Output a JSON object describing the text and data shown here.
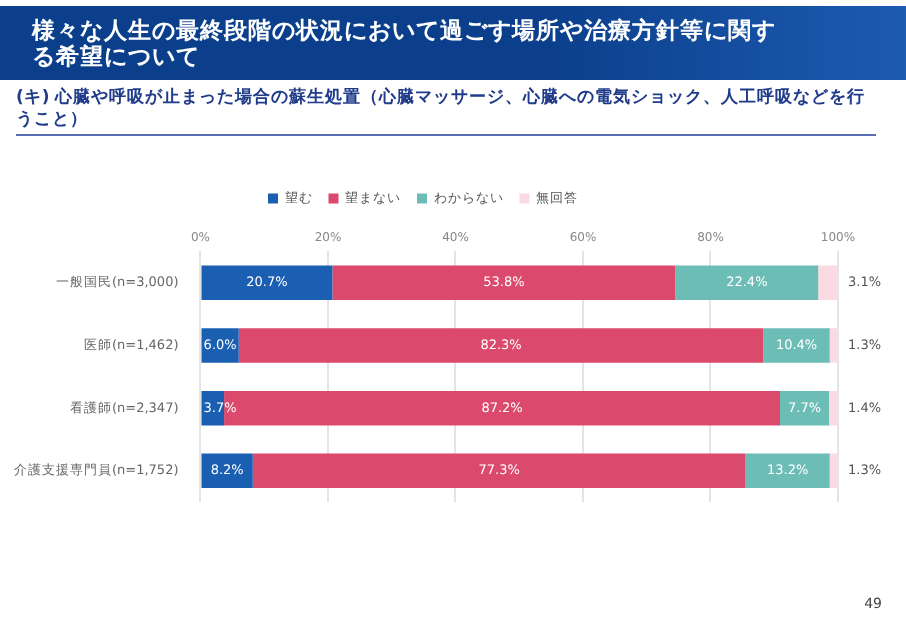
{
  "chart_data": {
    "type": "bar",
    "orientation": "horizontal",
    "stacked": true,
    "title": "様々な人生の最終段階の状況において過ごす場所や治療方針等に関する希望について",
    "subtitle": "(キ) 心臓や呼吸が止まった場合の蘇生処置（心臓マッサージ、心臓への電気ショック、人工呼吸などを行うこと）",
    "categories": [
      "一般国民(n=3,000)",
      "医師(n=1,462)",
      "看護師(n=2,347)",
      "介護支援専門員(n=1,752)"
    ],
    "series": [
      {
        "name": "望む",
        "color": "#1b5fb3",
        "values": [
          20.7,
          6.0,
          3.7,
          8.2
        ],
        "value_labels": [
          "20.7%",
          "6.0%",
          "3.7%",
          "8.2%"
        ]
      },
      {
        "name": "望まない",
        "color": "#db4a6c",
        "values": [
          53.8,
          82.3,
          87.2,
          77.3
        ],
        "value_labels": [
          "53.8%",
          "82.3%",
          "87.2%",
          "77.3%"
        ]
      },
      {
        "name": "わからない",
        "color": "#6dbdb7",
        "values": [
          22.4,
          10.4,
          7.7,
          13.2
        ],
        "value_labels": [
          "22.4%",
          "10.4%",
          "7.7%",
          "13.2%"
        ]
      },
      {
        "name": "無回答",
        "color": "#fadbe1",
        "values": [
          3.1,
          1.3,
          1.4,
          1.3
        ],
        "value_labels": [
          "3.1%",
          "1.3%",
          "1.4%",
          "1.3%"
        ]
      }
    ],
    "xlim": [
      0,
      100
    ],
    "xticks": [
      {
        "value": 0,
        "label": "0%"
      },
      {
        "value": 20,
        "label": "20%"
      },
      {
        "value": 40,
        "label": "40%"
      },
      {
        "value": 60,
        "label": "60%"
      },
      {
        "value": 80,
        "label": "80%"
      },
      {
        "value": 100,
        "label": "100%"
      }
    ],
    "grid": "x",
    "legend": "top",
    "annotations": [
      "49"
    ]
  }
}
